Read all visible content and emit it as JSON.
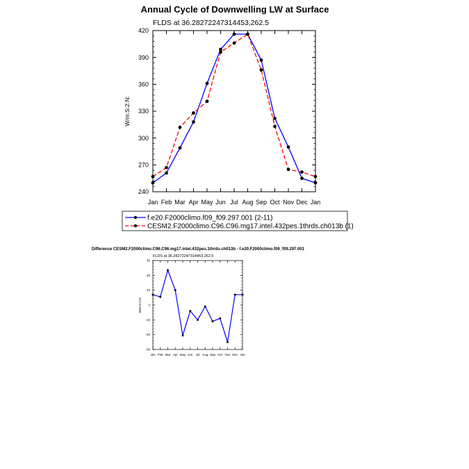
{
  "chart_data": [
    {
      "type": "line",
      "title": "Annual Cycle of Downwelling LW at Surface",
      "subtitle": "FLDS at 36.28272247314453,262.5",
      "ylabel": "W/m:S:2:N:",
      "xlabel": "",
      "categories": [
        "Jan",
        "Feb",
        "Mar",
        "Apr",
        "May",
        "Jun",
        "Jul",
        "Aug",
        "Sep",
        "Oct",
        "Nov",
        "Dec",
        "Jan"
      ],
      "ylim": [
        240,
        420
      ],
      "yticks": [
        240,
        270,
        300,
        330,
        360,
        390,
        420
      ],
      "series": [
        {
          "name": "f.e20.F2000climo.f09_f09.297.001 (2-11)",
          "color": "#0000ff",
          "dash": "solid",
          "values": [
            250,
            261,
            289,
            318,
            361,
            399,
            416,
            416,
            387,
            322,
            290,
            255,
            250
          ]
        },
        {
          "name": "CESM2.F2000climo.C96.C96.mg17.intel.432pes.1thrds.ch013b (1)",
          "color": "#ff0000",
          "dash": "dashed",
          "values": [
            257,
            267,
            312,
            328,
            341,
            396,
            406,
            416,
            376,
            313,
            265,
            262,
            257
          ]
        }
      ],
      "legend": "bottom"
    },
    {
      "type": "line",
      "title": "Difference CESM2.F2000climo.C96.C96.mg17.intel.432pes.1thrds.ch013b - f.e20.F2000climo.f09_f09.297.001",
      "subtitle": "FLDS at 36.28272247314453,262.5",
      "ylabel": "W/m:S:2:N:",
      "xlabel": "",
      "categories": [
        "Jan",
        "Feb",
        "Mar",
        "Apr",
        "May",
        "Jun",
        "Jul",
        "Aug",
        "Sep",
        "Oct",
        "Nov",
        "Dec",
        "Jan"
      ],
      "ylim": [
        -30,
        30
      ],
      "yticks": [
        -30,
        -20,
        -10,
        0,
        10,
        20,
        30
      ],
      "series": [
        {
          "color": "#0000ff",
          "values": [
            7,
            5.5,
            23.5,
            10,
            -20.5,
            -4,
            -10,
            -1,
            -11,
            -9,
            -25,
            7,
            7
          ]
        }
      ]
    }
  ]
}
